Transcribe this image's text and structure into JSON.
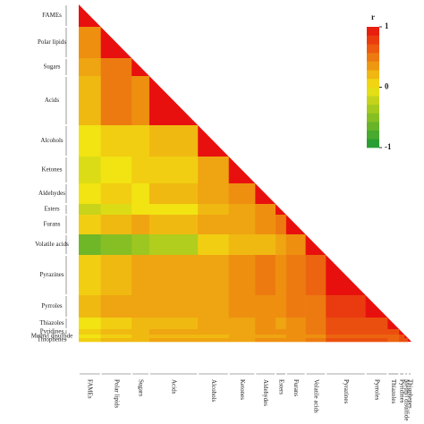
{
  "chart_data": {
    "type": "heatmap",
    "categories": [
      "FAMEs",
      "Polar lipids",
      "Sugars",
      "Acids",
      "Alcohols",
      "Ketones",
      "Aldehydes",
      "Esters",
      "Furans",
      "Volatile acids",
      "Pyrazines",
      "Pyrroles",
      "Thiazoles",
      "Pyridines",
      "Methyl disulfide",
      "Thiophenes"
    ],
    "values": [
      [
        1
      ],
      [
        0.4,
        1
      ],
      [
        0.3,
        0.5,
        1
      ],
      [
        0.2,
        0.5,
        0.4,
        1
      ],
      [
        0.0,
        0.1,
        0.1,
        0.2,
        1
      ],
      [
        -0.1,
        0.0,
        0.1,
        0.1,
        0.3,
        1
      ],
      [
        0.0,
        0.1,
        0.0,
        0.2,
        0.3,
        0.4,
        1
      ],
      [
        -0.2,
        -0.1,
        0.0,
        0.0,
        0.2,
        0.3,
        0.4,
        1
      ],
      [
        0.1,
        0.2,
        0.3,
        0.2,
        0.3,
        0.3,
        0.4,
        0.5,
        1
      ],
      [
        -0.6,
        -0.5,
        -0.4,
        -0.3,
        0.1,
        0.2,
        0.2,
        0.3,
        0.4,
        1
      ],
      [
        0.1,
        0.2,
        0.3,
        0.3,
        0.3,
        0.4,
        0.5,
        0.4,
        0.5,
        0.6,
        1
      ],
      [
        0.2,
        0.3,
        0.3,
        0.3,
        0.3,
        0.4,
        0.4,
        0.4,
        0.5,
        0.5,
        0.8,
        1
      ],
      [
        0.0,
        0.1,
        0.2,
        0.2,
        0.3,
        0.3,
        0.4,
        0.3,
        0.4,
        0.5,
        0.7,
        0.7,
        1
      ],
      [
        0.1,
        0.2,
        0.2,
        0.3,
        0.3,
        0.3,
        0.4,
        0.4,
        0.4,
        0.5,
        0.7,
        0.7,
        0.7,
        1
      ],
      [
        0.0,
        0.1,
        0.2,
        0.2,
        0.2,
        0.3,
        0.3,
        0.3,
        0.4,
        0.4,
        0.6,
        0.6,
        0.6,
        0.7,
        1
      ],
      [
        0.1,
        0.2,
        0.2,
        0.3,
        0.3,
        0.3,
        0.4,
        0.4,
        0.4,
        0.5,
        0.7,
        0.7,
        0.6,
        0.7,
        0.7,
        1
      ]
    ],
    "colorbar_title": "r",
    "clim": [
      -1,
      1
    ],
    "cticks": [
      -1,
      0,
      1
    ],
    "colorscale": [
      "#1a9a36",
      "#f2e312",
      "#e8100e"
    ]
  }
}
